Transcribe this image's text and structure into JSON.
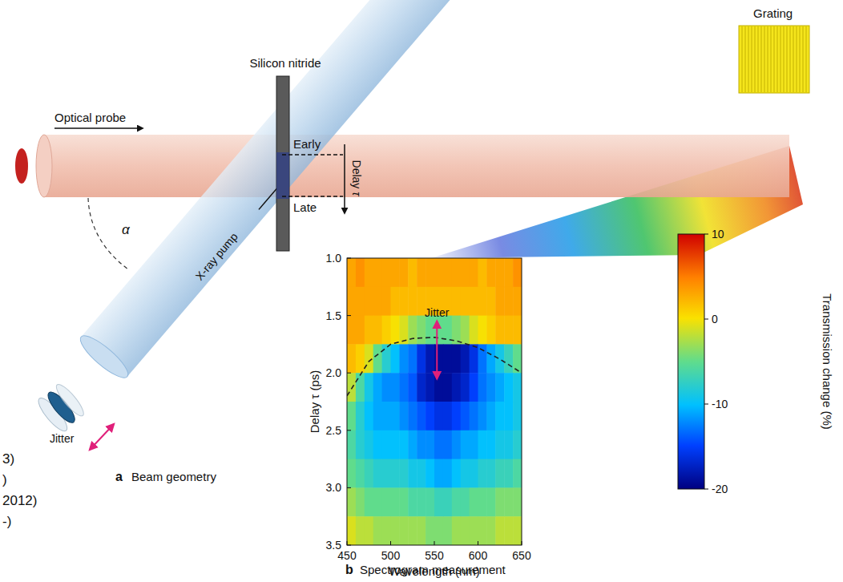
{
  "diagram": {
    "beam_geometry": {
      "panel_letter": "a",
      "title": "Beam geometry",
      "optical_probe": "Optical probe",
      "sample": "Silicon nitride",
      "early": "Early",
      "late": "Late",
      "delay": "Delay",
      "delay_symbol": "τ",
      "angle": "α",
      "xray_pump": "X-ray pump",
      "jitter": "Jitter",
      "grating": "Grating"
    },
    "margin_fragments": [
      "3)",
      ")",
      "2012)",
      "-)"
    ]
  },
  "chart_data": {
    "type": "heatmap",
    "panel_letter": "b",
    "title": "Spectrogram measurement",
    "x_label": "Wavelength (nm)",
    "y_label": "Delay τ (ps)",
    "xlim": [
      450,
      650
    ],
    "ylim": [
      1.0,
      3.5
    ],
    "xticks": [
      450,
      500,
      550,
      600,
      650
    ],
    "yticks": [
      {
        "value": 1.0,
        "label": "1.0"
      },
      1.5,
      {
        "value": 2.0,
        "label": "2.0"
      },
      2.5,
      {
        "value": 3.0,
        "label": "3.0"
      },
      3.5
    ],
    "x_edges": [
      450,
      460,
      470,
      480,
      490,
      500,
      510,
      520,
      530,
      540,
      550,
      560,
      570,
      580,
      590,
      600,
      610,
      620,
      630,
      640,
      650
    ],
    "y_edges": [
      1.0,
      1.25,
      1.5,
      1.75,
      2.0,
      2.25,
      2.5,
      2.75,
      3.0,
      3.25,
      3.5
    ],
    "cells": [
      [
        3,
        4,
        3,
        3,
        3,
        3,
        3,
        2,
        3,
        3,
        3,
        3,
        3,
        3,
        3,
        2,
        3,
        3,
        3,
        4
      ],
      [
        3,
        3,
        3,
        3,
        3,
        2,
        2,
        2,
        2,
        2,
        2,
        2,
        2,
        2,
        2,
        2,
        2,
        3,
        3,
        3
      ],
      [
        3,
        3,
        2,
        2,
        1,
        0,
        -1,
        -3,
        -4,
        -5,
        -5,
        -5,
        -4,
        -3,
        -1,
        0,
        1,
        2,
        2,
        2
      ],
      [
        2,
        1,
        -1,
        -5,
        -8,
        -10,
        -12,
        -13,
        -16,
        -18,
        -19,
        -19,
        -19,
        -18,
        -16,
        -13,
        -11,
        -9,
        -7,
        -5
      ],
      [
        -2,
        -6,
        -9,
        -11,
        -12,
        -12,
        -13,
        -14,
        -17,
        -18,
        -19,
        -19,
        -18,
        -17,
        -15,
        -13,
        -12,
        -11,
        -10,
        -9
      ],
      [
        -5,
        -8,
        -10,
        -11,
        -11,
        -11,
        -12,
        -13,
        -14,
        -15,
        -16,
        -16,
        -15,
        -14,
        -13,
        -12,
        -11,
        -10,
        -10,
        -9
      ],
      [
        -6,
        -8,
        -9,
        -10,
        -10,
        -10,
        -10,
        -11,
        -12,
        -12,
        -13,
        -13,
        -12,
        -11,
        -11,
        -10,
        -10,
        -9,
        -9,
        -8
      ],
      [
        -5,
        -6,
        -7,
        -8,
        -8,
        -8,
        -8,
        -9,
        -9,
        -10,
        -11,
        -11,
        -10,
        -9,
        -9,
        -8,
        -8,
        -7,
        -7,
        -6
      ],
      [
        -3,
        -4,
        -5,
        -5,
        -5,
        -5,
        -5,
        -6,
        -6,
        -6,
        -7,
        -7,
        -6,
        -6,
        -5,
        -5,
        -5,
        -4,
        -4,
        -4
      ],
      [
        -1,
        -2,
        -2,
        -3,
        -3,
        -3,
        -3,
        -3,
        -3,
        -4,
        -4,
        -4,
        -3,
        -3,
        -3,
        -3,
        -3,
        -2,
        -2,
        -2
      ]
    ],
    "colorbar": {
      "label": "Transmission change (%)",
      "lim": [
        -20,
        10
      ],
      "ticks": [
        10,
        0,
        -10,
        -20
      ]
    },
    "boundary": {
      "x": [
        450,
        475,
        500,
        525,
        550,
        575,
        600,
        625,
        650
      ],
      "y": [
        2.2,
        1.9,
        1.75,
        1.7,
        1.69,
        1.72,
        1.78,
        1.88,
        2.0
      ]
    },
    "annotations": [
      {
        "text": "Jitter",
        "x": 553,
        "y_from": 1.55,
        "y_to": 2.05
      }
    ]
  }
}
